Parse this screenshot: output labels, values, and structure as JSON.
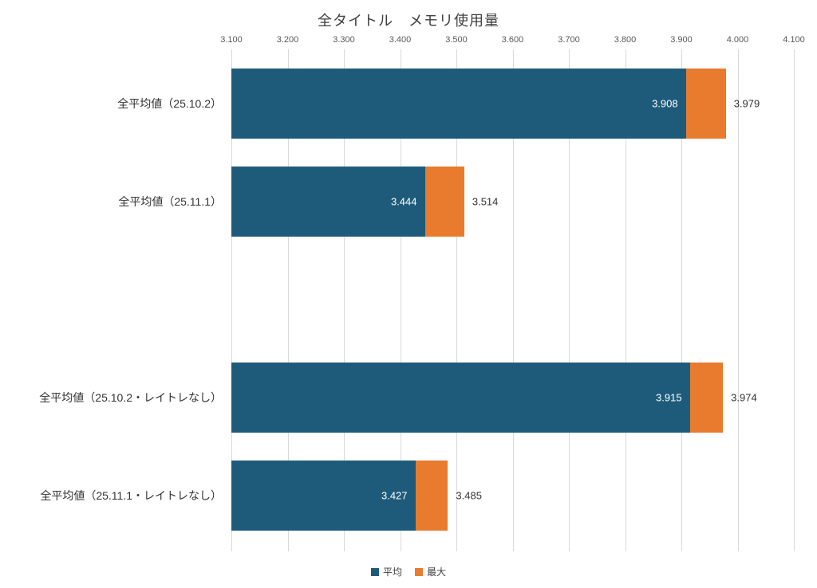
{
  "chart_data": {
    "type": "bar",
    "orientation": "horizontal",
    "title": "全タイトル　メモリ使用量",
    "xlabel": "",
    "ylabel": "",
    "xlim": [
      3.1,
      4.1
    ],
    "grid": true,
    "legend_position": "bottom",
    "ticks": [
      {
        "value": 3.1,
        "label": "3.100"
      },
      {
        "value": 3.2,
        "label": "3.200"
      },
      {
        "value": 3.3,
        "label": "3.300"
      },
      {
        "value": 3.4,
        "label": "3.400"
      },
      {
        "value": 3.5,
        "label": "3.500"
      },
      {
        "value": 3.6,
        "label": "3.600"
      },
      {
        "value": 3.7,
        "label": "3.700"
      },
      {
        "value": 3.8,
        "label": "3.800"
      },
      {
        "value": 3.9,
        "label": "3.900"
      },
      {
        "value": 4.0,
        "label": "4.000"
      },
      {
        "value": 4.1,
        "label": "4.100"
      }
    ],
    "series": [
      {
        "name": "平均",
        "color": "#1e5b7a"
      },
      {
        "name": "最大",
        "color": "#e87b2e"
      }
    ],
    "rows": [
      {
        "category": "全平均値（25.10.2）",
        "avg": 3.908,
        "max": 3.979,
        "avg_label": "3.908",
        "max_label": "3.979"
      },
      {
        "category": "全平均値（25.11.1）",
        "avg": 3.444,
        "max": 3.514,
        "avg_label": "3.444",
        "max_label": "3.514"
      },
      {
        "spacer": true
      },
      {
        "category": "全平均値（25.10.2・レイトレなし）",
        "avg": 3.915,
        "max": 3.974,
        "avg_label": "3.915",
        "max_label": "3.974"
      },
      {
        "category": "全平均値（25.11.1・レイトレなし）",
        "avg": 3.427,
        "max": 3.485,
        "avg_label": "3.427",
        "max_label": "3.485"
      }
    ],
    "legend": [
      {
        "label": "平均",
        "color": "#1e5b7a"
      },
      {
        "label": "最大",
        "color": "#e87b2e"
      }
    ]
  }
}
